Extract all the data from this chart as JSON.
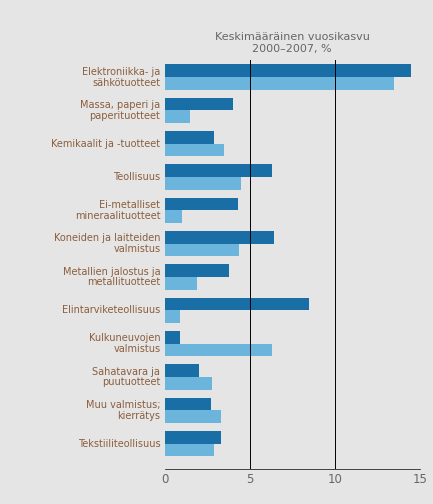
{
  "title_line1": "Keskimääräinen vuosikasvu",
  "title_line2": "2000–2007, %",
  "categories": [
    "Elektroniikka- ja\nsähkötuotteet",
    "Massa, paperi ja\npaperituotteet",
    "Kemikaalit ja -tuotteet",
    "Teollisuus",
    "Ei-metalliset\nmineraalituotteet",
    "Koneiden ja laitteiden\nvalmistus",
    "Metallien jalostus ja\nmetallituotteet",
    "Elintarviketeollisuus",
    "Kulkuneuvojen\nvalmistus",
    "Sahatavara ja\npuutuotteet",
    "Muu valmistus;\nkierrätys",
    "Tekstiiliteollisuus"
  ],
  "dark_blue_values": [
    14.5,
    4.0,
    2.9,
    6.3,
    4.3,
    6.4,
    3.8,
    8.5,
    0.9,
    2.0,
    2.7,
    3.3
  ],
  "light_blue_values": [
    13.5,
    1.5,
    3.5,
    4.5,
    1.0,
    4.4,
    1.9,
    0.9,
    6.3,
    2.8,
    3.3,
    2.9
  ],
  "dark_blue_color": "#1A6EA6",
  "light_blue_color": "#6BB4DC",
  "background_color": "#E5E5E5",
  "label_color": "#8B5E3C",
  "title_color": "#666666",
  "xlim": [
    0,
    15
  ],
  "xticks": [
    0,
    5,
    10,
    15
  ],
  "bar_height": 0.38,
  "figsize": [
    4.33,
    5.04
  ],
  "dpi": 100
}
